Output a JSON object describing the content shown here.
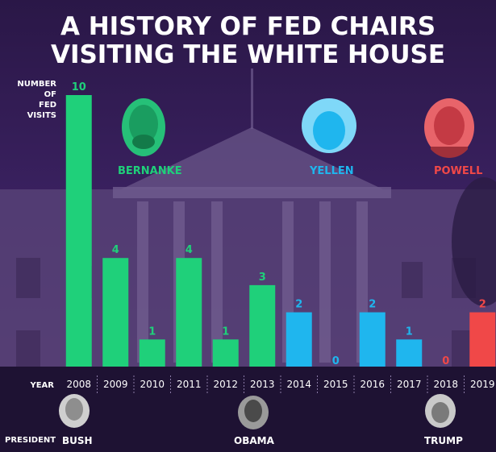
{
  "title_line1": "A HISTORY OF FED CHAIRS",
  "title_line2": "VISITING THE WHITE HOUSE",
  "ylabel_lines": [
    "NUMBER",
    "OF",
    "FED",
    "VISITS"
  ],
  "xlabel": "YEAR",
  "president_label": "PRESIDENT",
  "colors": {
    "bernanke": "#1fd07a",
    "yellen": "#1fb6ee",
    "powell": "#f04848",
    "background": "#2a1747"
  },
  "chairs": [
    {
      "name": "BERNANKE",
      "color": "#1fd07a",
      "icon": "bernanke-portrait"
    },
    {
      "name": "YELLEN",
      "color": "#1fb6ee",
      "icon": "yellen-portrait"
    },
    {
      "name": "POWELL",
      "color": "#f04848",
      "icon": "powell-portrait"
    }
  ],
  "presidents": [
    {
      "name": "BUSH",
      "icon": "bush-portrait"
    },
    {
      "name": "OBAMA",
      "icon": "obama-portrait"
    },
    {
      "name": "TRUMP",
      "icon": "trump-portrait"
    }
  ],
  "chart_data": {
    "type": "bar",
    "title": "A HISTORY OF FED CHAIRS VISITING THE WHITE HOUSE",
    "xlabel": "YEAR",
    "ylabel": "NUMBER OF FED VISITS",
    "ylim": [
      0,
      10
    ],
    "grid": false,
    "categories": [
      "2008",
      "2009",
      "2010",
      "2011",
      "2012",
      "2013",
      "2014",
      "2015",
      "2016",
      "2017",
      "2018",
      "2019"
    ],
    "values": [
      10,
      4,
      1,
      4,
      1,
      3,
      2,
      0,
      2,
      1,
      0,
      2
    ],
    "chair": [
      "BERNANKE",
      "BERNANKE",
      "BERNANKE",
      "BERNANKE",
      "BERNANKE",
      "BERNANKE",
      "YELLEN",
      "YELLEN",
      "YELLEN",
      "YELLEN",
      "POWELL",
      "POWELL"
    ]
  }
}
